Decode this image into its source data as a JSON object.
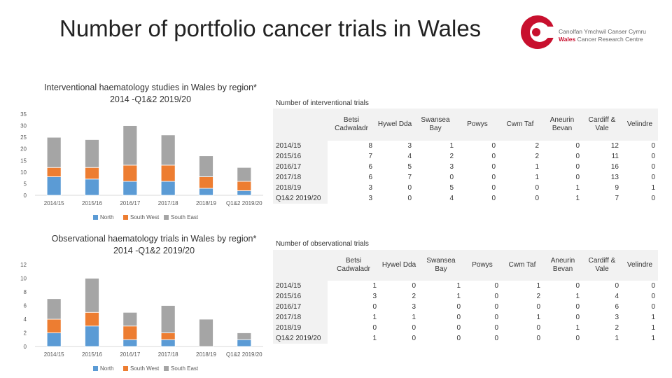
{
  "page": {
    "title": "Number of portfolio cancer trials in Wales",
    "logo": {
      "line1": "Canolfan Ymchwil Canser Cymru",
      "line2_brand": "Wales",
      "line2_rest": "Cancer Research Centre"
    }
  },
  "colors": {
    "north": "#5b9bd5",
    "south_west": "#ed7d31",
    "south_east": "#a5a5a5",
    "logo_red": "#c8102e",
    "header_bg": "#f2f2f2"
  },
  "tables": {
    "interventional": {
      "title": "Number of interventional trials",
      "headers": [
        "",
        "Betsi Cadwaladr",
        "Hywel Dda",
        "Swansea Bay",
        "Powys",
        "Cwm Taf",
        "Aneurin Bevan",
        "Cardiff & Vale",
        "Velindre"
      ],
      "rows": [
        {
          "year": "2014/15",
          "values": [
            8,
            3,
            1,
            0,
            2,
            0,
            12,
            0
          ]
        },
        {
          "year": "2015/16",
          "values": [
            7,
            4,
            2,
            0,
            2,
            0,
            11,
            0
          ]
        },
        {
          "year": "2016/17",
          "values": [
            6,
            5,
            3,
            0,
            1,
            0,
            16,
            0
          ]
        },
        {
          "year": "2017/18",
          "values": [
            6,
            7,
            0,
            0,
            1,
            0,
            13,
            0
          ]
        },
        {
          "year": "2018/19",
          "values": [
            3,
            0,
            5,
            0,
            0,
            1,
            9,
            1
          ]
        },
        {
          "year": "Q1&2 2019/20",
          "values": [
            3,
            0,
            4,
            0,
            0,
            1,
            7,
            0
          ]
        }
      ]
    },
    "observational": {
      "title": "Number of observational trials",
      "headers": [
        "",
        "Betsi Cadwaladr",
        "Hywel Dda",
        "Swansea Bay",
        "Powys",
        "Cwm Taf",
        "Aneurin Bevan",
        "Cardiff & Vale",
        "Velindre"
      ],
      "rows": [
        {
          "year": "2014/15",
          "values": [
            1,
            0,
            1,
            0,
            1,
            0,
            0,
            0
          ]
        },
        {
          "year": "2015/16",
          "values": [
            3,
            2,
            1,
            0,
            2,
            1,
            4,
            0
          ]
        },
        {
          "year": "2016/17",
          "values": [
            0,
            3,
            0,
            0,
            0,
            0,
            6,
            0
          ]
        },
        {
          "year": "2017/18",
          "values": [
            1,
            1,
            0,
            0,
            1,
            0,
            3,
            1
          ]
        },
        {
          "year": "2018/19",
          "values": [
            0,
            0,
            0,
            0,
            0,
            1,
            2,
            1
          ]
        },
        {
          "year": "Q1&2 2019/20",
          "values": [
            1,
            0,
            0,
            0,
            0,
            0,
            1,
            1
          ]
        }
      ]
    }
  },
  "chart_data": [
    {
      "type": "bar",
      "stacked": true,
      "title": "Interventional haematology studies in Wales by region* 2014 -Q1&2 2019/20",
      "categories": [
        "2014/15",
        "2015/16",
        "2016/17",
        "2017/18",
        "2018/19",
        "Q1&2 2019/20"
      ],
      "series": [
        {
          "name": "North",
          "color": "#5b9bd5",
          "values": [
            8,
            7,
            6,
            6,
            3,
            2
          ]
        },
        {
          "name": "South West",
          "color": "#ed7d31",
          "values": [
            4,
            5,
            7,
            7,
            5,
            4
          ]
        },
        {
          "name": "South East",
          "color": "#a5a5a5",
          "values": [
            13,
            12,
            17,
            13,
            9,
            6
          ]
        }
      ],
      "ylim": [
        0,
        35
      ],
      "yticks": [
        0,
        5,
        10,
        15,
        20,
        25,
        30,
        35
      ],
      "xlabel": "",
      "ylabel": "",
      "legend": "bottom",
      "grid": false
    },
    {
      "type": "bar",
      "stacked": true,
      "title": "Observational haematology trials in Wales by region* 2014 -Q1&2 2019/20",
      "categories": [
        "2014/15",
        "2015/16",
        "2016/17",
        "2017/18",
        "2018/19",
        "Q1&2 2019/20"
      ],
      "series": [
        {
          "name": "North",
          "color": "#5b9bd5",
          "values": [
            2,
            3,
            1,
            1,
            0,
            1
          ]
        },
        {
          "name": "South West",
          "color": "#ed7d31",
          "values": [
            2,
            2,
            2,
            1,
            0,
            0
          ]
        },
        {
          "name": "South East",
          "color": "#a5a5a5",
          "values": [
            3,
            5,
            2,
            4,
            4,
            1
          ]
        }
      ],
      "ylim": [
        0,
        12
      ],
      "yticks": [
        0,
        2,
        4,
        6,
        8,
        10,
        12
      ],
      "xlabel": "",
      "ylabel": "",
      "legend": "bottom",
      "grid": false
    }
  ]
}
